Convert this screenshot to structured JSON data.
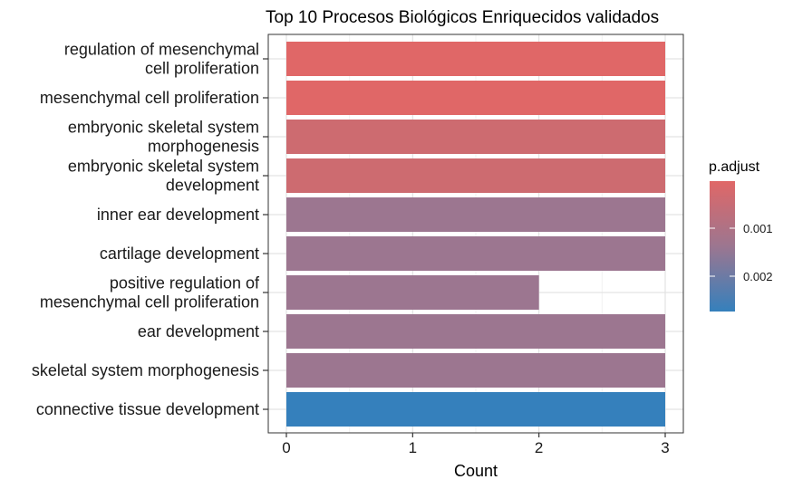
{
  "chart_data": {
    "type": "bar",
    "orientation": "horizontal",
    "title": "Top 10 Procesos Biológicos Enriquecidos validados",
    "xlabel": "Count",
    "ylabel": "",
    "xlim": [
      0,
      3
    ],
    "x_ticks": [
      "0",
      "1",
      "2",
      "3"
    ],
    "grid": true,
    "legend_position": "right",
    "categories": [
      [
        "regulation of mesenchymal",
        "cell proliferation"
      ],
      [
        "mesenchymal cell proliferation"
      ],
      [
        "embryonic skeletal system",
        "morphogenesis"
      ],
      [
        "embryonic skeletal system",
        "development"
      ],
      [
        "inner ear development"
      ],
      [
        "cartilage development"
      ],
      [
        "positive regulation of",
        "mesenchymal cell proliferation"
      ],
      [
        "ear development"
      ],
      [
        "skeletal system morphogenesis"
      ],
      [
        "connective tissue development"
      ]
    ],
    "values": [
      3,
      3,
      3,
      3,
      3,
      3,
      2,
      3,
      3,
      3
    ],
    "bar_colors": [
      "#E06767",
      "#E06767",
      "#CD6B70",
      "#CD6B70",
      "#9C7690",
      "#9C7690",
      "#9C7690",
      "#9C7690",
      "#9C7690",
      "#3580BC"
    ],
    "color_scale": {
      "title": "p.adjust",
      "low_color": "#E06767",
      "mid_color": "#9C7690",
      "high_color": "#3580BC",
      "ticks": [
        "0.001",
        "0.002"
      ]
    }
  }
}
